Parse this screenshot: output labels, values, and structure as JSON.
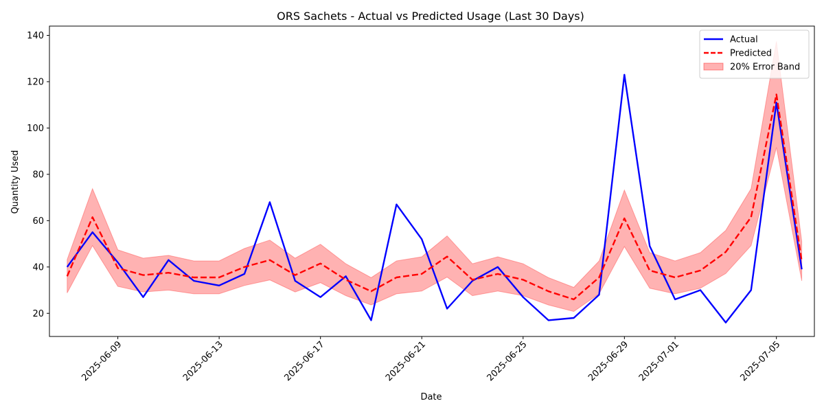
{
  "chart_data": {
    "type": "line",
    "title": "ORS Sachets - Actual vs Predicted Usage (Last 30 Days)",
    "xlabel": "Date",
    "ylabel": "Quantity Used",
    "x": [
      "2025-06-07",
      "2025-06-08",
      "2025-06-09",
      "2025-06-10",
      "2025-06-11",
      "2025-06-12",
      "2025-06-13",
      "2025-06-14",
      "2025-06-15",
      "2025-06-16",
      "2025-06-17",
      "2025-06-18",
      "2025-06-19",
      "2025-06-20",
      "2025-06-21",
      "2025-06-22",
      "2025-06-23",
      "2025-06-24",
      "2025-06-25",
      "2025-06-26",
      "2025-06-27",
      "2025-06-28",
      "2025-06-29",
      "2025-06-30",
      "2025-07-01",
      "2025-07-02",
      "2025-07-03",
      "2025-07-04",
      "2025-07-05",
      "2025-07-06"
    ],
    "x_tick_labels": [
      "2025-06-09",
      "2025-06-13",
      "2025-06-17",
      "2025-06-21",
      "2025-06-25",
      "2025-06-29",
      "2025-07-01",
      "2025-07-05"
    ],
    "y_tick_labels": [
      "20",
      "40",
      "60",
      "80",
      "100",
      "120",
      "140"
    ],
    "xlim": [
      "2025-06-06.3",
      "2025-07-06.5"
    ],
    "ylim": [
      10,
      144
    ],
    "grid": false,
    "legend_position": "top-right",
    "series": [
      {
        "name": "Actual",
        "style": "solid",
        "color": "#0000ff",
        "values": [
          40,
          55,
          42,
          27,
          43,
          34,
          32,
          37,
          68,
          34,
          27,
          36,
          17,
          67,
          52,
          22,
          34,
          40,
          27,
          17,
          18,
          28,
          123,
          49,
          26,
          30,
          16,
          30,
          111,
          39
        ]
      },
      {
        "name": "Predicted",
        "style": "dashed",
        "color": "#ff0000",
        "values": [
          36,
          61.5,
          39.5,
          36.5,
          37.5,
          35.5,
          35.5,
          40,
          43,
          36.5,
          41.5,
          34.5,
          29.5,
          35.5,
          37,
          44.5,
          34.5,
          37,
          34.5,
          29.5,
          26,
          35.5,
          61,
          38.5,
          35.5,
          38.5,
          46.5,
          61.5,
          114.5,
          42.5
        ]
      }
    ],
    "band": {
      "name": "20% Error Band",
      "color": "#ff0000",
      "opacity": 0.3,
      "factor": 0.2,
      "of_series": "Predicted"
    }
  }
}
